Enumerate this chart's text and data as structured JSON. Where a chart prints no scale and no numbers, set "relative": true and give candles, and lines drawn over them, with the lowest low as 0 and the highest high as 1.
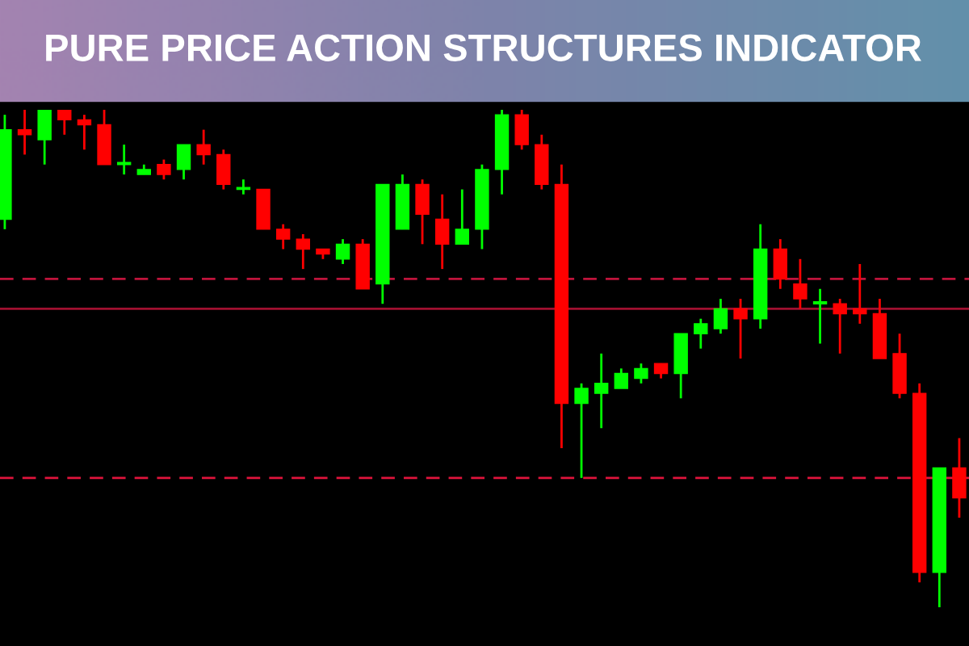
{
  "chart_data": {
    "type": "candlestick",
    "title": "PURE PRICE ACTION STRUCTURES INDICATOR",
    "relative": true,
    "categories": [
      null,
      null,
      null,
      null,
      null,
      null,
      null,
      null,
      null,
      null,
      null,
      null,
      null,
      null,
      null,
      null,
      null,
      null,
      null,
      null,
      null,
      null,
      null,
      null,
      null,
      null,
      null,
      null,
      null,
      null,
      null,
      null,
      null,
      null,
      null,
      null,
      null,
      null,
      null,
      null,
      null,
      null,
      null,
      null,
      null,
      null,
      null,
      null,
      null
    ],
    "ohlc": [
      [
        0.78,
        0.99,
        0.76,
        0.96
      ],
      [
        0.96,
        1.0,
        0.91,
        0.95
      ],
      [
        0.94,
        1.0,
        0.89,
        1.0
      ],
      [
        1.0,
        1.0,
        0.95,
        0.98
      ],
      [
        0.98,
        0.99,
        0.92,
        0.97
      ],
      [
        0.97,
        1.0,
        0.89,
        0.89
      ],
      [
        0.89,
        0.93,
        0.87,
        0.89
      ],
      [
        0.87,
        0.89,
        0.87,
        0.88
      ],
      [
        0.89,
        0.9,
        0.86,
        0.87
      ],
      [
        0.88,
        0.93,
        0.86,
        0.93
      ],
      [
        0.93,
        0.96,
        0.89,
        0.91
      ],
      [
        0.91,
        0.92,
        0.84,
        0.85
      ],
      [
        0.84,
        0.86,
        0.83,
        0.84
      ],
      [
        0.84,
        0.84,
        0.76,
        0.76
      ],
      [
        0.76,
        0.77,
        0.72,
        0.74
      ],
      [
        0.74,
        0.75,
        0.68,
        0.72
      ],
      [
        0.72,
        0.72,
        0.7,
        0.71
      ],
      [
        0.7,
        0.74,
        0.69,
        0.73
      ],
      [
        0.73,
        0.74,
        0.64,
        0.64
      ],
      [
        0.65,
        0.85,
        0.61,
        0.85
      ],
      [
        0.76,
        0.87,
        0.76,
        0.85
      ],
      [
        0.85,
        0.86,
        0.73,
        0.79
      ],
      [
        0.78,
        0.83,
        0.68,
        0.73
      ],
      [
        0.73,
        0.84,
        0.73,
        0.76
      ],
      [
        0.76,
        0.89,
        0.72,
        0.88
      ],
      [
        0.88,
        1.0,
        0.83,
        0.99
      ],
      [
        0.99,
        1.0,
        0.92,
        0.93
      ],
      [
        0.93,
        0.95,
        0.84,
        0.85
      ],
      [
        0.85,
        0.89,
        0.32,
        0.41
      ],
      [
        0.41,
        0.45,
        0.26,
        0.44
      ],
      [
        0.43,
        0.51,
        0.36,
        0.45
      ],
      [
        0.44,
        0.48,
        0.44,
        0.47
      ],
      [
        0.46,
        0.49,
        0.45,
        0.48
      ],
      [
        0.49,
        0.49,
        0.46,
        0.47
      ],
      [
        0.47,
        0.55,
        0.42,
        0.55
      ],
      [
        0.55,
        0.58,
        0.52,
        0.57
      ],
      [
        0.56,
        0.62,
        0.55,
        0.6
      ],
      [
        0.6,
        0.62,
        0.5,
        0.58
      ],
      [
        0.58,
        0.77,
        0.56,
        0.72
      ],
      [
        0.72,
        0.74,
        0.64,
        0.66
      ],
      [
        0.65,
        0.7,
        0.6,
        0.62
      ],
      [
        0.61,
        0.64,
        0.53,
        0.61
      ],
      [
        0.61,
        0.62,
        0.51,
        0.59
      ],
      [
        0.6,
        0.69,
        0.57,
        0.59
      ],
      [
        0.59,
        0.62,
        0.5,
        0.5
      ],
      [
        0.51,
        0.55,
        0.42,
        0.43
      ],
      [
        0.43,
        0.45,
        0.05,
        0.07
      ],
      [
        0.07,
        0.28,
        0.0,
        0.28
      ],
      [
        0.28,
        0.34,
        0.18,
        0.22
      ]
    ],
    "ref_lines": [
      {
        "axis": "y",
        "value": 0.66,
        "color": "#c0143c",
        "line_style": "dashed"
      },
      {
        "axis": "y",
        "value": 0.6,
        "color": "#a01030",
        "line_style": "solid"
      },
      {
        "axis": "y",
        "value": 0.26,
        "color": "#e0143c",
        "line_style": "dashed"
      }
    ],
    "legend": false
  }
}
